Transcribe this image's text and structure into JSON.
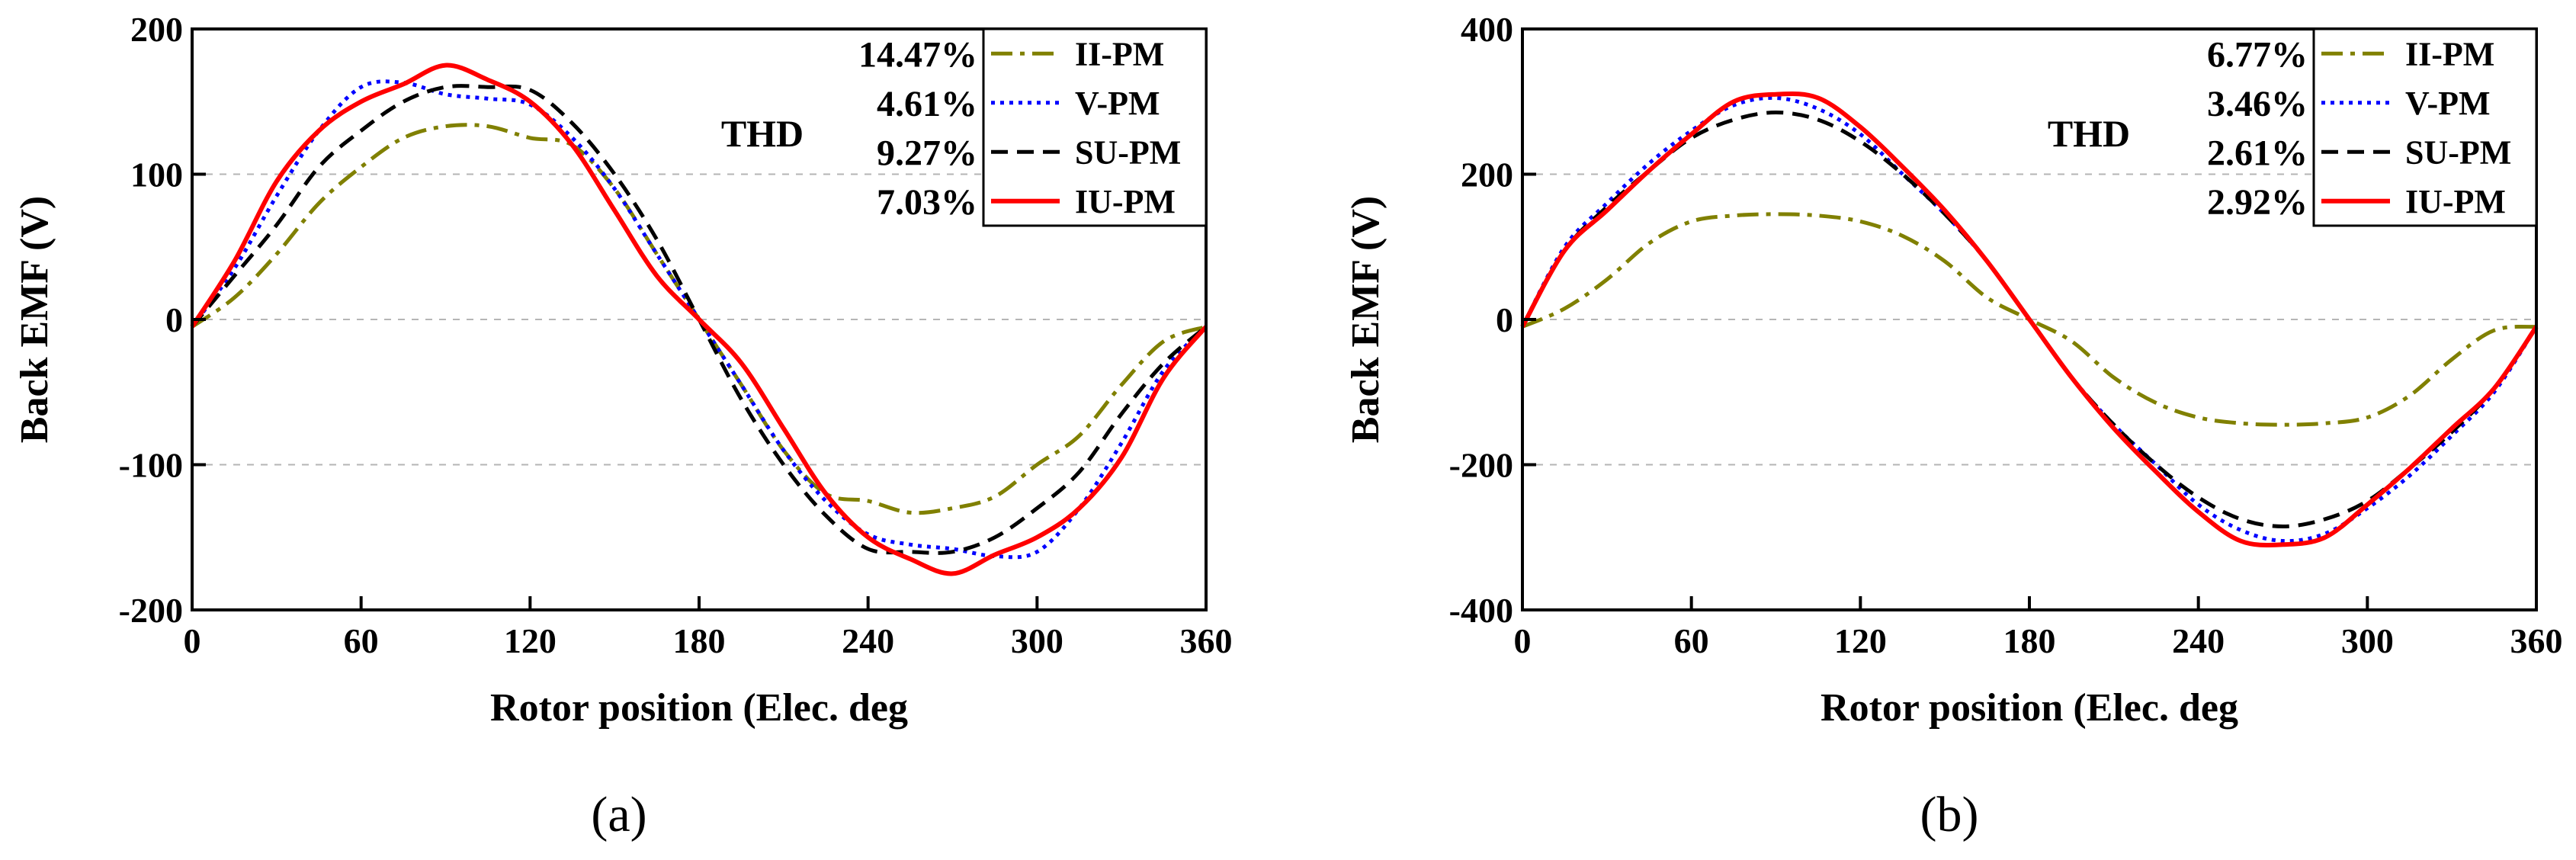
{
  "chart_data": [
    {
      "type": "line",
      "panel_label": "(a)",
      "xlabel": "Rotor position (Elec. deg",
      "ylabel": "Back EMF (V)",
      "xlim": [
        0,
        360
      ],
      "ylim": [
        -200,
        200
      ],
      "xticks": [
        0,
        60,
        120,
        180,
        240,
        300,
        360
      ],
      "yticks": [
        -200,
        -100,
        0,
        100,
        200
      ],
      "ygrid": [
        -100,
        0,
        100
      ],
      "thd_title": "THD",
      "legend_position": "top-right",
      "series": [
        {
          "name": "II-PM",
          "thd": "14.47%",
          "color": "#808000",
          "dash": "dashdot",
          "x": [
            0,
            15,
            30,
            45,
            60,
            75,
            90,
            105,
            120,
            135,
            150,
            165,
            180,
            195,
            210,
            225,
            240,
            255,
            270,
            285,
            300,
            315,
            330,
            345,
            360
          ],
          "y": [
            -5,
            15,
            45,
            80,
            105,
            125,
            133,
            133,
            125,
            120,
            90,
            45,
            0,
            -45,
            -90,
            -120,
            -125,
            -133,
            -130,
            -122,
            -100,
            -80,
            -45,
            -15,
            -5
          ]
        },
        {
          "name": "V-PM",
          "thd": "4.61%",
          "color": "#0000ff",
          "dash": "dot",
          "x": [
            0,
            15,
            30,
            45,
            60,
            75,
            90,
            105,
            120,
            135,
            150,
            165,
            180,
            195,
            210,
            225,
            240,
            255,
            270,
            285,
            300,
            315,
            330,
            345,
            360
          ],
          "y": [
            -5,
            35,
            85,
            130,
            160,
            163,
            155,
            152,
            148,
            125,
            90,
            45,
            0,
            -45,
            -90,
            -125,
            -148,
            -155,
            -158,
            -163,
            -160,
            -130,
            -85,
            -35,
            -5
          ]
        },
        {
          "name": "SU-PM",
          "thd": "9.27%",
          "color": "#000000",
          "dash": "dash",
          "x": [
            0,
            15,
            30,
            45,
            60,
            75,
            90,
            105,
            120,
            135,
            150,
            165,
            180,
            195,
            210,
            225,
            240,
            255,
            270,
            285,
            300,
            315,
            330,
            345,
            360
          ],
          "y": [
            -5,
            30,
            65,
            105,
            130,
            150,
            160,
            160,
            158,
            135,
            100,
            55,
            0,
            -55,
            -100,
            -135,
            -158,
            -160,
            -160,
            -150,
            -130,
            -105,
            -65,
            -30,
            -5
          ]
        },
        {
          "name": "IU-PM",
          "thd": "7.03%",
          "color": "#ff0000",
          "dash": "solid",
          "x": [
            0,
            15,
            30,
            45,
            60,
            75,
            90,
            105,
            120,
            135,
            150,
            165,
            180,
            195,
            210,
            225,
            240,
            255,
            270,
            285,
            300,
            315,
            330,
            345,
            360
          ],
          "y": [
            -5,
            40,
            95,
            130,
            150,
            162,
            175,
            165,
            150,
            120,
            75,
            30,
            0,
            -30,
            -75,
            -120,
            -150,
            -165,
            -175,
            -162,
            -150,
            -130,
            -95,
            -40,
            -5
          ]
        }
      ]
    },
    {
      "type": "line",
      "panel_label": "(b)",
      "xlabel": "Rotor position (Elec. deg",
      "ylabel": "Back EMF (V)",
      "xlim": [
        0,
        360
      ],
      "ylim": [
        -400,
        400
      ],
      "xticks": [
        0,
        60,
        120,
        180,
        240,
        300,
        360
      ],
      "yticks": [
        -400,
        -200,
        0,
        200,
        400
      ],
      "ygrid": [
        -200,
        0,
        200
      ],
      "thd_title": "THD",
      "legend_position": "top-right",
      "series": [
        {
          "name": "II-PM",
          "thd": "6.77%",
          "color": "#808000",
          "dash": "dashdot",
          "x": [
            0,
            15,
            30,
            45,
            60,
            75,
            90,
            105,
            120,
            135,
            150,
            165,
            180,
            195,
            210,
            225,
            240,
            255,
            270,
            285,
            300,
            315,
            330,
            345,
            360
          ],
          "y": [
            -10,
            15,
            55,
            105,
            135,
            143,
            145,
            143,
            135,
            115,
            80,
            30,
            0,
            -30,
            -80,
            -115,
            -135,
            -143,
            -145,
            -143,
            -135,
            -105,
            -55,
            -15,
            -10
          ]
        },
        {
          "name": "V-PM",
          "thd": "3.46%",
          "color": "#0000ff",
          "dash": "dot",
          "x": [
            0,
            15,
            30,
            45,
            60,
            75,
            90,
            105,
            120,
            135,
            150,
            165,
            180,
            195,
            210,
            225,
            240,
            255,
            270,
            285,
            300,
            315,
            330,
            345,
            360
          ],
          "y": [
            -10,
            100,
            160,
            215,
            260,
            295,
            305,
            290,
            255,
            200,
            145,
            80,
            0,
            -80,
            -145,
            -200,
            -255,
            -290,
            -305,
            -295,
            -260,
            -215,
            -160,
            -100,
            -10
          ]
        },
        {
          "name": "SU-PM",
          "thd": "2.61%",
          "color": "#000000",
          "dash": "dash",
          "x": [
            0,
            15,
            30,
            45,
            60,
            75,
            90,
            105,
            120,
            135,
            150,
            165,
            180,
            195,
            210,
            225,
            240,
            255,
            270,
            285,
            300,
            315,
            330,
            345,
            360
          ],
          "y": [
            -10,
            95,
            155,
            205,
            250,
            275,
            285,
            275,
            245,
            200,
            145,
            80,
            0,
            -80,
            -145,
            -200,
            -245,
            -275,
            -285,
            -275,
            -250,
            -205,
            -155,
            -95,
            -10
          ]
        },
        {
          "name": "IU-PM",
          "thd": "2.92%",
          "color": "#ff0000",
          "dash": "solid",
          "x": [
            0,
            15,
            30,
            45,
            60,
            75,
            90,
            105,
            120,
            135,
            150,
            165,
            180,
            195,
            210,
            225,
            240,
            255,
            270,
            285,
            300,
            315,
            330,
            345,
            360
          ],
          "y": [
            -10,
            95,
            150,
            205,
            255,
            300,
            310,
            305,
            265,
            210,
            150,
            80,
            0,
            -80,
            -150,
            -210,
            -265,
            -305,
            -310,
            -300,
            -255,
            -205,
            -150,
            -95,
            -10
          ]
        }
      ]
    }
  ]
}
